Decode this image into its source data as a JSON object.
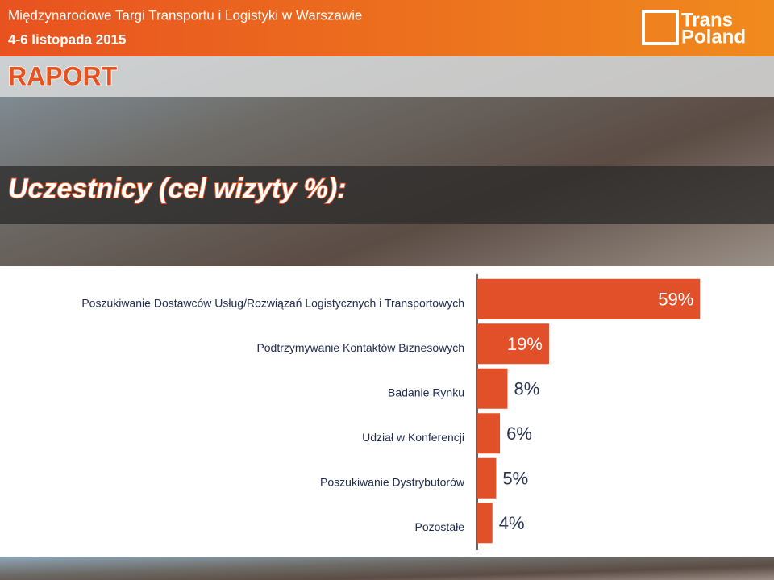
{
  "header": {
    "event": "Międzynarodowe Targi Transportu i Logistyki w Warszawie",
    "date": "4-6 listopada 2015",
    "logo_top": "Trans",
    "logo_bottom": "Poland",
    "report": "RAPORT"
  },
  "chart_data": {
    "type": "hbar",
    "title": "Uczestnicy (cel wizyty %):",
    "categories": [
      "Poszukiwanie Dostawców Usług/Rozwiązań Logistycznych i Transportowych",
      "Podtrzymywanie Kontaktów Biznesowych",
      "Badanie Rynku",
      "Udział w Konferencji",
      "Poszukiwanie Dystrybutorów",
      "Pozostałe"
    ],
    "values": [
      59,
      19,
      8,
      6,
      5,
      4
    ],
    "value_labels": [
      "59%",
      "19%",
      "8%",
      "6%",
      "5%",
      "4%"
    ],
    "color": "#e2502a",
    "xlim": [
      0,
      60
    ]
  }
}
